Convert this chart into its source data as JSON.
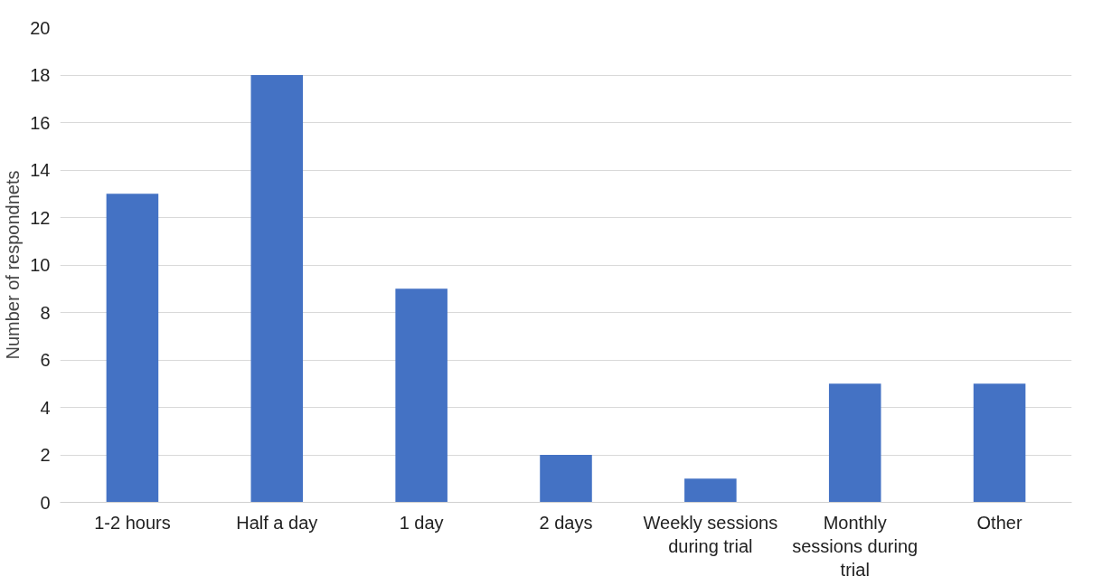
{
  "chart_data": {
    "type": "bar",
    "ylabel": "Number of respondnets",
    "categories": [
      "1-2 hours",
      "Half a day",
      "1 day",
      "2 days",
      "Weekly sessions during trial",
      "Monthly sessions during trial",
      "Other"
    ],
    "values": [
      13,
      18,
      9,
      2,
      1,
      5,
      5
    ],
    "color": "#4472c4",
    "ylim": [
      0,
      20
    ],
    "yticks": [
      0,
      2,
      4,
      6,
      8,
      10,
      12,
      14,
      16,
      18,
      20
    ],
    "grid": "y"
  }
}
